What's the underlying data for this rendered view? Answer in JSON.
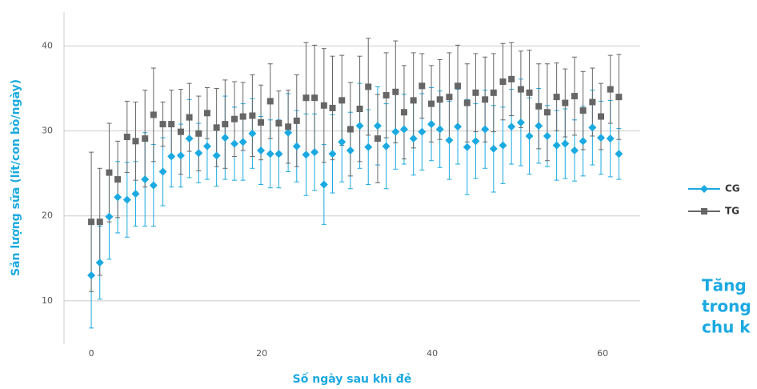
{
  "chart_data": {
    "type": "errorline",
    "xlabel": "Số ngày sau khi đẻ",
    "ylabel": "Sản lượng sữa (lít/con bò/ngày)",
    "annotation": [
      "Tăng",
      "trong",
      "chu k"
    ],
    "xlim": [
      -3.2,
      64.4
    ],
    "ylim": [
      4.9,
      44
    ],
    "xticks": [
      0,
      20,
      40,
      60
    ],
    "yticks": [
      10,
      20,
      30,
      40
    ],
    "grid": true,
    "x": [
      0,
      1,
      2.1,
      3.1,
      4.2,
      5.2,
      6.3,
      7.3,
      8.4,
      9.4,
      10.5,
      11.5,
      12.6,
      13.6,
      14.7,
      15.7,
      16.8,
      17.8,
      18.9,
      19.9,
      21,
      22,
      23.1,
      24.1,
      25.2,
      26.2,
      27.3,
      28.3,
      29.4,
      30.4,
      31.5,
      32.5,
      33.6,
      34.6,
      35.7,
      36.7,
      37.8,
      38.8,
      39.9,
      40.9,
      42,
      43,
      44.1,
      45.1,
      46.2,
      47.2,
      48.3,
      49.3,
      50.4,
      51.4,
      52.5,
      53.5,
      54.6,
      55.6,
      56.7,
      57.7,
      58.8,
      59.8,
      60.9,
      61.9
    ],
    "series": [
      {
        "name": "CG",
        "color": "#1ba9e1",
        "marker": "diamond",
        "values": [
          13.0,
          14.5,
          19.9,
          22.2,
          21.9,
          22.6,
          24.3,
          23.6,
          25.2,
          27.0,
          27.1,
          29.1,
          27.4,
          28.2,
          27.1,
          29.2,
          28.5,
          28.7,
          29.7,
          27.7,
          27.3,
          27.3,
          29.8,
          28.2,
          27.2,
          27.5,
          23.7,
          27.3,
          28.7,
          27.7,
          30.6,
          28.1,
          30.6,
          28.2,
          29.9,
          30.2,
          29.1,
          29.9,
          30.8,
          30.2,
          28.9,
          30.5,
          28.1,
          28.8,
          30.2,
          27.9,
          28.3,
          30.5,
          31.0,
          29.4,
          30.6,
          29.4,
          28.3,
          28.5,
          27.7,
          28.8,
          30.4,
          29.2,
          29.1,
          27.3
        ],
        "errors": [
          6.2,
          4.3,
          5,
          4.2,
          4.4,
          3.8,
          5.5,
          4.8,
          4,
          3.6,
          3.7,
          4.6,
          3.5,
          3.9,
          3.6,
          4.9,
          4.3,
          4.5,
          4.1,
          4,
          4,
          4,
          4.6,
          4.2,
          4.8,
          4.5,
          4.7,
          4.6,
          4.7,
          4.5,
          5,
          4.4,
          4.6,
          5,
          4.4,
          4.1,
          4.3,
          4.5,
          4.3,
          4.5,
          4.6,
          4.4,
          5.6,
          4.4,
          4.6,
          5.1,
          4.5,
          4.4,
          5.1,
          4.5,
          4.4,
          3.6,
          4.1,
          4.1,
          3.6,
          4.1,
          4.4,
          4.3,
          4.5,
          3
        ]
      },
      {
        "name": "TG",
        "color": "#666666",
        "marker": "square",
        "values": [
          19.3,
          19.3,
          25.1,
          24.3,
          29.3,
          28.8,
          29.1,
          31.9,
          30.8,
          30.8,
          29.9,
          31.6,
          29.7,
          32.1,
          30.4,
          30.8,
          31.4,
          31.7,
          31.8,
          31.0,
          33.5,
          30.9,
          30.5,
          31.2,
          33.9,
          33.9,
          33.0,
          32.7,
          33.6,
          30.2,
          32.6,
          35.2,
          29.1,
          34.2,
          34.6,
          32.2,
          33.6,
          35.3,
          33.2,
          33.7,
          34.0,
          35.3,
          33.3,
          34.5,
          33.7,
          34.5,
          35.8,
          36.1,
          34.9,
          34.5,
          32.9,
          32.2,
          34.0,
          33.3,
          34.1,
          32.4,
          33.4,
          31.7,
          34.9,
          34.0
        ],
        "errors": [
          8.2,
          6.3,
          5.8,
          4.5,
          4.2,
          4.6,
          5.7,
          5.5,
          2.6,
          4,
          5,
          4,
          4.4,
          3,
          4.6,
          5.2,
          4.4,
          4,
          4.8,
          4.4,
          4.4,
          3.8,
          4.3,
          5.4,
          6.5,
          6.2,
          6.7,
          6.1,
          5.3,
          5.5,
          6.2,
          5.7,
          5.2,
          5,
          6,
          5.5,
          5.6,
          3.8,
          4.5,
          4.7,
          5.2,
          4.8,
          4.6,
          4.6,
          5,
          4.6,
          4.5,
          4.3,
          4.5,
          5,
          5,
          5.7,
          4,
          4,
          4.6,
          4.6,
          4,
          3.9,
          4,
          5
        ]
      }
    ]
  }
}
